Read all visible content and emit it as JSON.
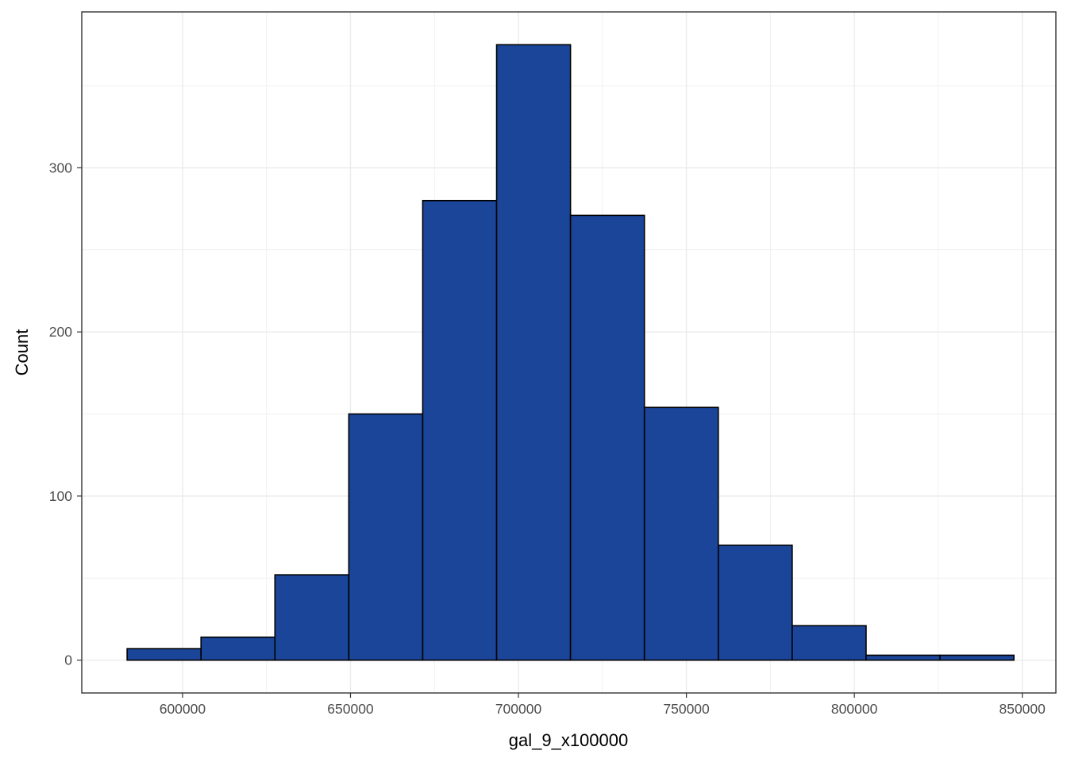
{
  "chart_data": {
    "type": "bar",
    "subtype": "histogram",
    "title": "",
    "xlabel": "gal_9_x100000",
    "ylabel": "Count",
    "xlim": [
      570000,
      860000
    ],
    "ylim": [
      -20,
      395
    ],
    "x_ticks": [
      600000,
      650000,
      700000,
      750000,
      800000,
      850000
    ],
    "x_tick_labels": [
      "600000",
      "650000",
      "700000",
      "750000",
      "800000",
      "850000"
    ],
    "y_ticks": [
      0,
      100,
      200,
      300
    ],
    "y_tick_labels": [
      "0",
      "100",
      "200",
      "300"
    ],
    "grid": true,
    "legend": "none",
    "fill_color": "#1a4599",
    "outline_color": "#000000",
    "bins": [
      {
        "x0": 583500,
        "x1": 605500,
        "count": 7
      },
      {
        "x0": 605500,
        "x1": 627500,
        "count": 14
      },
      {
        "x0": 627500,
        "x1": 649500,
        "count": 52
      },
      {
        "x0": 649500,
        "x1": 671500,
        "count": 150
      },
      {
        "x0": 671500,
        "x1": 693500,
        "count": 280
      },
      {
        "x0": 693500,
        "x1": 715500,
        "count": 375
      },
      {
        "x0": 715500,
        "x1": 737500,
        "count": 271
      },
      {
        "x0": 737500,
        "x1": 759500,
        "count": 154
      },
      {
        "x0": 759500,
        "x1": 781500,
        "count": 70
      },
      {
        "x0": 781500,
        "x1": 803500,
        "count": 21
      },
      {
        "x0": 803500,
        "x1": 825500,
        "count": 3
      },
      {
        "x0": 825500,
        "x1": 847500,
        "count": 3
      }
    ]
  }
}
